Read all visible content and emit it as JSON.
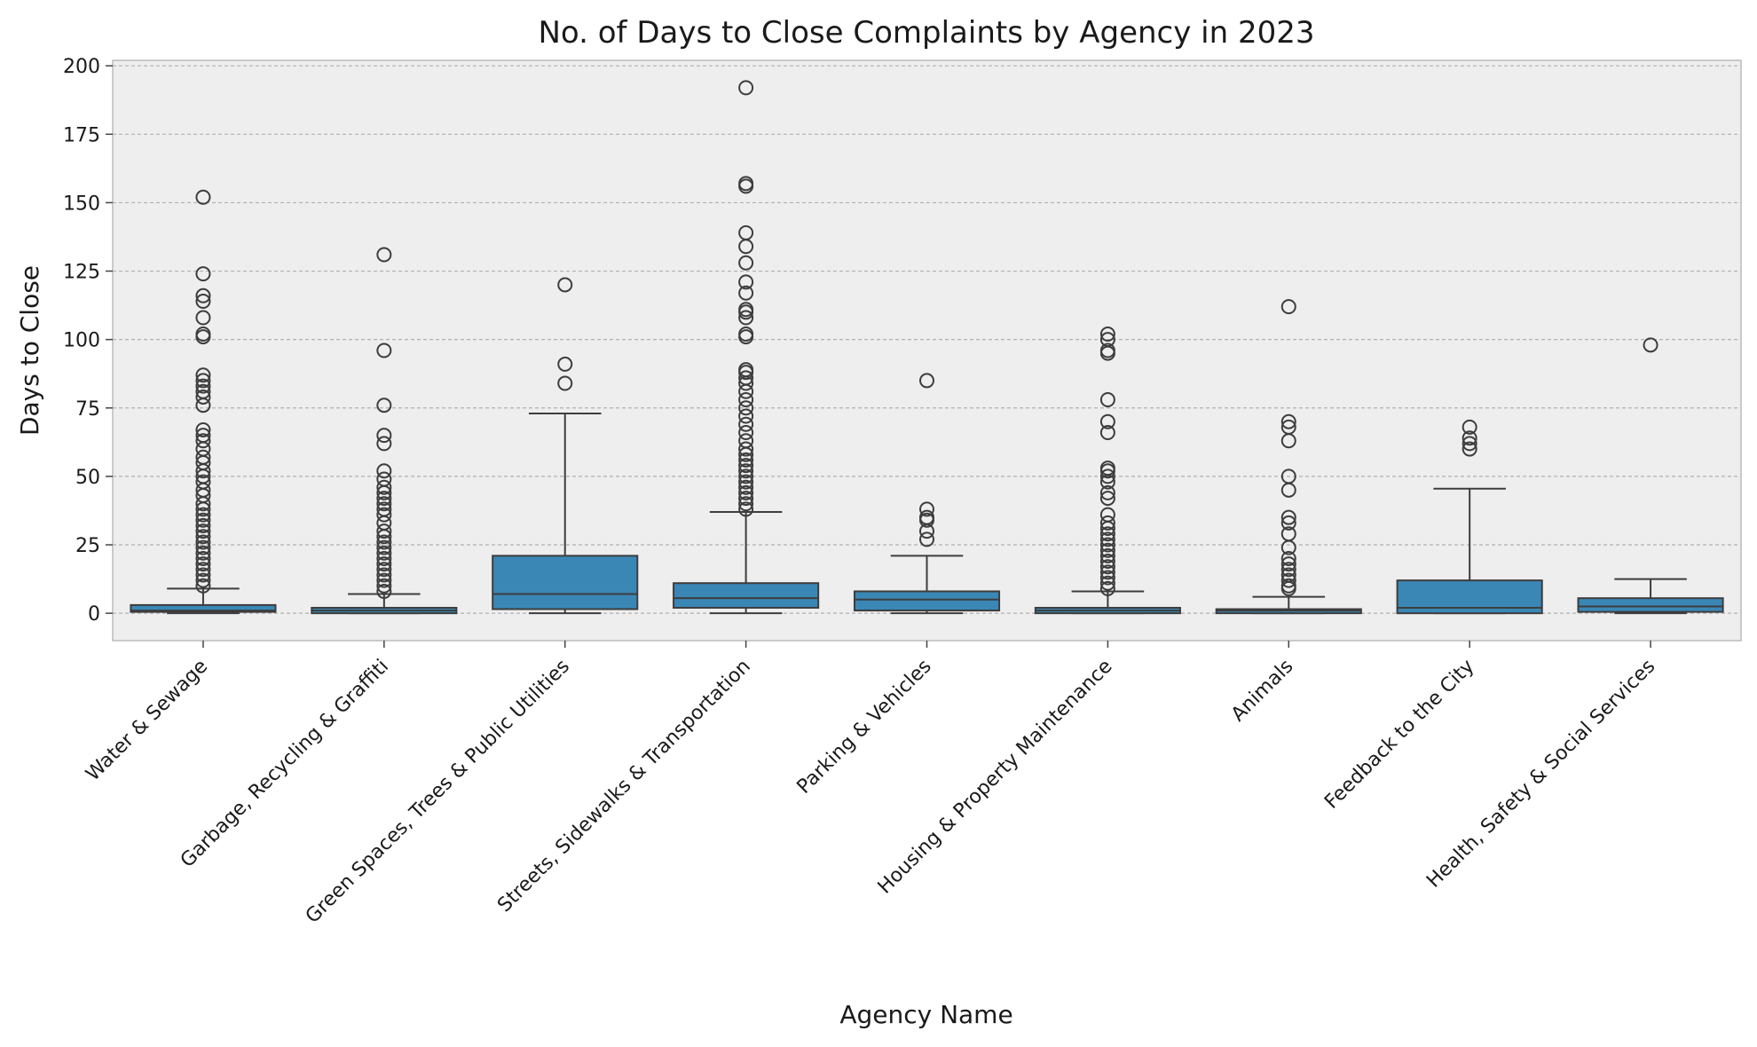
{
  "chart_data": {
    "type": "box",
    "title": "No. of Days to Close Complaints by Agency in 2023",
    "xlabel": "Agency Name",
    "ylabel": "Days to Close",
    "ylim": [
      -10,
      202
    ],
    "yticks": [
      0,
      25,
      50,
      75,
      100,
      125,
      150,
      175,
      200
    ],
    "grid": "y",
    "colors": {
      "box": "#3a87b6",
      "line": "#3d3d3d",
      "background": "#eeeeee",
      "grid": "#b0b0b0"
    },
    "categories": [
      "Water & Sewage",
      "Garbage, Recycling & Graffiti",
      "Green Spaces, Trees & Public Utilities",
      "Streets, Sidewalks & Transportation",
      "Parking & Vehicles",
      "Housing & Property Maintenance",
      "Animals",
      "Feedback to the City",
      "Health, Safety & Social Services"
    ],
    "boxes": [
      {
        "whisker_low": 0,
        "q1": 0.5,
        "median": 1,
        "q3": 3,
        "whisker_high": 9,
        "outliers": [
          10,
          12,
          14,
          16,
          18,
          20,
          22,
          24,
          26,
          28,
          30,
          32,
          34,
          36,
          38,
          40,
          43,
          45,
          48,
          50,
          52,
          55,
          57,
          60,
          63,
          65,
          67,
          76,
          79,
          81,
          83,
          85,
          87,
          101,
          102,
          108,
          114,
          116,
          124,
          152
        ]
      },
      {
        "whisker_low": 0,
        "q1": 0,
        "median": 1,
        "q3": 2,
        "whisker_high": 7,
        "outliers": [
          8,
          10,
          12,
          14,
          16,
          18,
          20,
          22,
          24,
          26,
          28,
          30,
          33,
          36,
          38,
          40,
          42,
          44,
          46,
          49,
          52,
          62,
          65,
          76,
          96,
          131
        ]
      },
      {
        "whisker_low": 0,
        "q1": 1.5,
        "median": 7,
        "q3": 21,
        "whisker_high": 73,
        "outliers": [
          84,
          91,
          120
        ]
      },
      {
        "whisker_low": 0,
        "q1": 2,
        "median": 5.5,
        "q3": 11,
        "whisker_high": 37,
        "outliers": [
          38,
          40,
          42,
          44,
          46,
          48,
          50,
          52,
          54,
          56,
          58,
          60,
          63,
          66,
          69,
          72,
          75,
          78,
          81,
          84,
          86,
          88,
          89,
          101,
          102,
          108,
          110,
          111,
          117,
          121,
          128,
          134,
          139,
          156,
          157,
          192
        ]
      },
      {
        "whisker_low": 0,
        "q1": 1,
        "median": 5,
        "q3": 8,
        "whisker_high": 21,
        "outliers": [
          27,
          30,
          34,
          35,
          38,
          85
        ]
      },
      {
        "whisker_low": 0,
        "q1": 0,
        "median": 1,
        "q3": 2,
        "whisker_high": 8,
        "outliers": [
          9,
          11,
          13,
          15,
          17,
          19,
          21,
          23,
          25,
          27,
          29,
          31,
          33,
          36,
          42,
          44,
          48,
          50,
          52,
          53,
          66,
          70,
          78,
          95,
          96,
          100,
          102
        ]
      },
      {
        "whisker_low": 0,
        "q1": 0,
        "median": 1,
        "q3": 1.5,
        "whisker_high": 6,
        "outliers": [
          9,
          10,
          12,
          14,
          16,
          18,
          20,
          24,
          29,
          33,
          35,
          45,
          50,
          63,
          68,
          70,
          112
        ]
      },
      {
        "whisker_low": 0,
        "q1": 0,
        "median": 2,
        "q3": 12,
        "whisker_high": 45.5,
        "outliers": [
          60,
          62,
          64,
          68
        ]
      },
      {
        "whisker_low": 0,
        "q1": 0.5,
        "median": 2.5,
        "q3": 5.5,
        "whisker_high": 12.5,
        "outliers": [
          98
        ]
      }
    ]
  }
}
